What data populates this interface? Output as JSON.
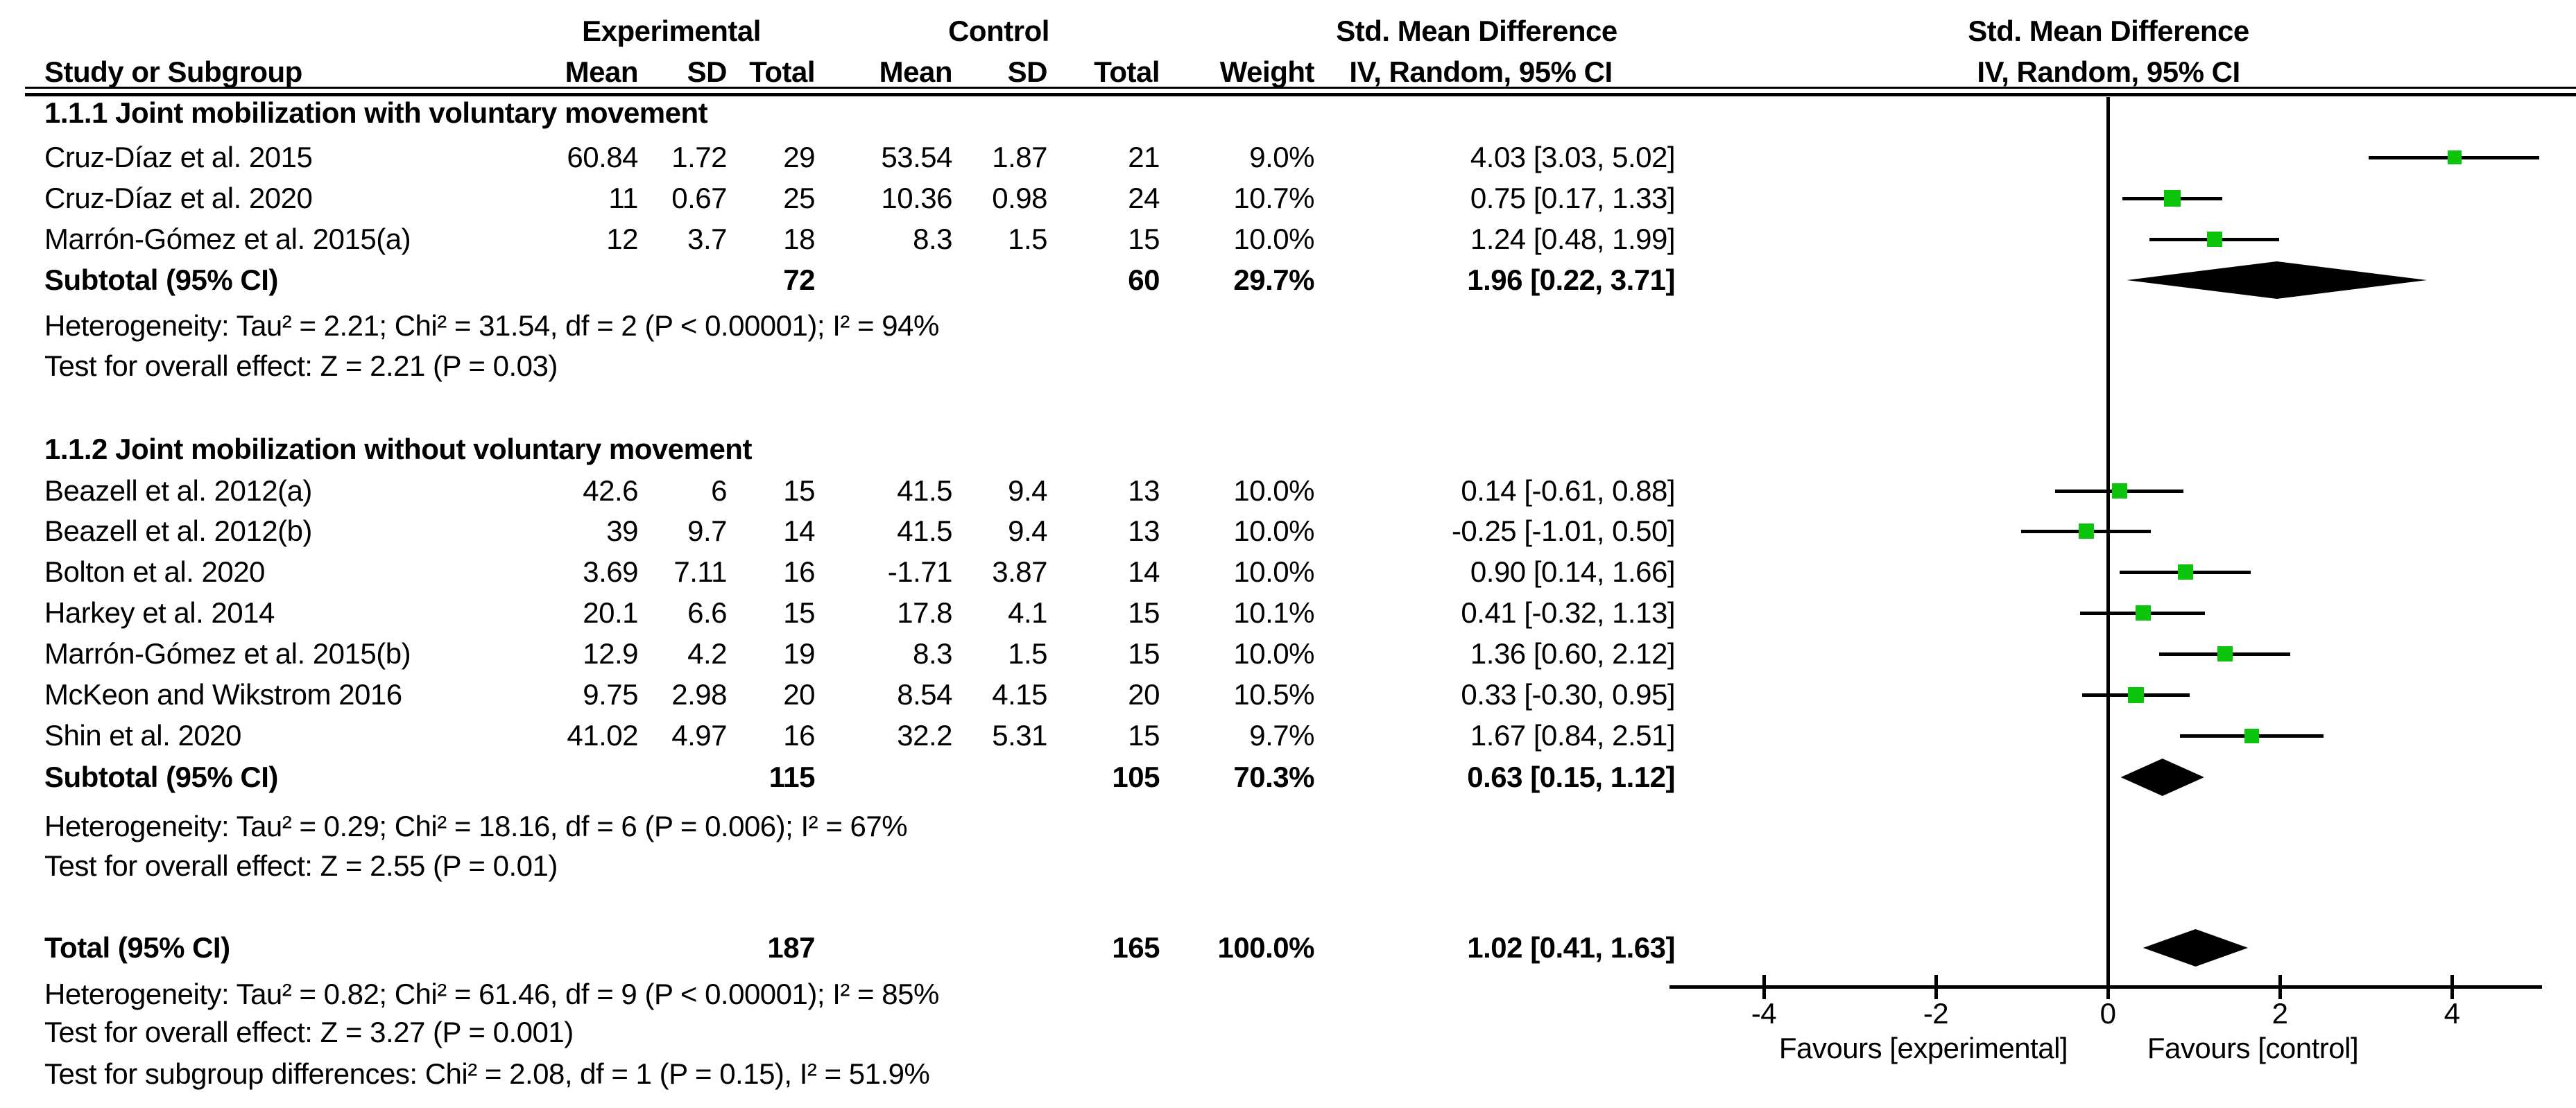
{
  "chart_data": {
    "type": "forest",
    "effect_measure": "Std. Mean Difference",
    "method": "IV, Random, 95% CI",
    "header": {
      "experimental": "Experimental",
      "control": "Control",
      "smd_text_col": "Std. Mean Difference",
      "smd_plot_col": "Std. Mean Difference",
      "study": "Study or Subgroup",
      "mean": "Mean",
      "sd": "SD",
      "total": "Total",
      "weight": "Weight",
      "iv_text_col": "IV, Random, 95% CI",
      "iv_plot_col": "IV, Random, 95% CI"
    },
    "groups": [
      {
        "title": "1.1.1 Joint mobilization with voluntary movement",
        "studies": [
          {
            "name": "Cruz-Díaz et al. 2015",
            "exp_mean": "60.84",
            "exp_sd": "1.72",
            "exp_total": "29",
            "ctl_mean": "53.54",
            "ctl_sd": "1.87",
            "ctl_total": "21",
            "weight": "9.0%",
            "ci_text": "4.03 [3.03, 5.02]",
            "est": 4.03,
            "lo": 3.03,
            "hi": 5.02
          },
          {
            "name": "Cruz-Díaz et al. 2020",
            "exp_mean": "11",
            "exp_sd": "0.67",
            "exp_total": "25",
            "ctl_mean": "10.36",
            "ctl_sd": "0.98",
            "ctl_total": "24",
            "weight": "10.7%",
            "ci_text": "0.75 [0.17, 1.33]",
            "est": 0.75,
            "lo": 0.17,
            "hi": 1.33
          },
          {
            "name": "Marrón-Gómez et al. 2015(a)",
            "exp_mean": "12",
            "exp_sd": "3.7",
            "exp_total": "18",
            "ctl_mean": "8.3",
            "ctl_sd": "1.5",
            "ctl_total": "15",
            "weight": "10.0%",
            "ci_text": "1.24 [0.48, 1.99]",
            "est": 1.24,
            "lo": 0.48,
            "hi": 1.99
          }
        ],
        "subtotal": {
          "label": "Subtotal (95% CI)",
          "exp_total": "72",
          "ctl_total": "60",
          "weight": "29.7%",
          "ci_text": "1.96 [0.22, 3.71]",
          "est": 1.96,
          "lo": 0.22,
          "hi": 3.71
        },
        "heterogeneity": "Heterogeneity: Tau² = 2.21; Chi² = 31.54, df = 2 (P < 0.00001); I² = 94%",
        "overall_effect": "Test for overall effect: Z = 2.21 (P = 0.03)"
      },
      {
        "title": "1.1.2 Joint mobilization without voluntary movement",
        "studies": [
          {
            "name": "Beazell et al. 2012(a)",
            "exp_mean": "42.6",
            "exp_sd": "6",
            "exp_total": "15",
            "ctl_mean": "41.5",
            "ctl_sd": "9.4",
            "ctl_total": "13",
            "weight": "10.0%",
            "ci_text": "0.14 [-0.61, 0.88]",
            "est": 0.14,
            "lo": -0.61,
            "hi": 0.88
          },
          {
            "name": "Beazell et al. 2012(b)",
            "exp_mean": "39",
            "exp_sd": "9.7",
            "exp_total": "14",
            "ctl_mean": "41.5",
            "ctl_sd": "9.4",
            "ctl_total": "13",
            "weight": "10.0%",
            "ci_text": "-0.25 [-1.01, 0.50]",
            "est": -0.25,
            "lo": -1.01,
            "hi": 0.5
          },
          {
            "name": "Bolton et al. 2020",
            "exp_mean": "3.69",
            "exp_sd": "7.11",
            "exp_total": "16",
            "ctl_mean": "-1.71",
            "ctl_sd": "3.87",
            "ctl_total": "14",
            "weight": "10.0%",
            "ci_text": "0.90 [0.14, 1.66]",
            "est": 0.9,
            "lo": 0.14,
            "hi": 1.66
          },
          {
            "name": "Harkey et al. 2014",
            "exp_mean": "20.1",
            "exp_sd": "6.6",
            "exp_total": "15",
            "ctl_mean": "17.8",
            "ctl_sd": "4.1",
            "ctl_total": "15",
            "weight": "10.1%",
            "ci_text": "0.41 [-0.32, 1.13]",
            "est": 0.41,
            "lo": -0.32,
            "hi": 1.13
          },
          {
            "name": "Marrón-Gómez et al. 2015(b)",
            "exp_mean": "12.9",
            "exp_sd": "4.2",
            "exp_total": "19",
            "ctl_mean": "8.3",
            "ctl_sd": "1.5",
            "ctl_total": "15",
            "weight": "10.0%",
            "ci_text": "1.36 [0.60, 2.12]",
            "est": 1.36,
            "lo": 0.6,
            "hi": 2.12
          },
          {
            "name": "McKeon and Wikstrom 2016",
            "exp_mean": "9.75",
            "exp_sd": "2.98",
            "exp_total": "20",
            "ctl_mean": "8.54",
            "ctl_sd": "4.15",
            "ctl_total": "20",
            "weight": "10.5%",
            "ci_text": "0.33 [-0.30, 0.95]",
            "est": 0.33,
            "lo": -0.3,
            "hi": 0.95
          },
          {
            "name": "Shin et al. 2020",
            "exp_mean": "41.02",
            "exp_sd": "4.97",
            "exp_total": "16",
            "ctl_mean": "32.2",
            "ctl_sd": "5.31",
            "ctl_total": "15",
            "weight": "9.7%",
            "ci_text": "1.67 [0.84, 2.51]",
            "est": 1.67,
            "lo": 0.84,
            "hi": 2.51
          }
        ],
        "subtotal": {
          "label": "Subtotal (95% CI)",
          "exp_total": "115",
          "ctl_total": "105",
          "weight": "70.3%",
          "ci_text": "0.63 [0.15, 1.12]",
          "est": 0.63,
          "lo": 0.15,
          "hi": 1.12
        },
        "heterogeneity": "Heterogeneity: Tau² = 0.29; Chi² = 18.16, df = 6 (P = 0.006); I² = 67%",
        "overall_effect": "Test for overall effect: Z = 2.55 (P = 0.01)"
      }
    ],
    "total": {
      "label": "Total (95% CI)",
      "exp_total": "187",
      "ctl_total": "165",
      "weight": "100.0%",
      "ci_text": "1.02 [0.41, 1.63]",
      "est": 1.02,
      "lo": 0.41,
      "hi": 1.63
    },
    "footer": {
      "heterogeneity": "Heterogeneity: Tau² = 0.82; Chi² = 61.46, df = 9 (P < 0.00001); I² = 85%",
      "overall_effect": "Test for overall effect: Z = 3.27 (P = 0.001)",
      "subgroup_diff": "Test for subgroup differences: Chi² = 2.08, df = 1 (P = 0.15), I² = 51.9%"
    },
    "axis": {
      "min": -5.1,
      "max": 5.05,
      "tick_values": [
        -4,
        -2,
        0,
        2,
        4
      ],
      "tick_labels": [
        "-4",
        "-2",
        "0",
        "2",
        "4"
      ],
      "favours_left": "Favours [experimental]",
      "favours_right": "Favours [control]"
    },
    "colors": {
      "marker_green": "#0bc40b",
      "line_black": "#000000",
      "diamond_black": "#000000"
    }
  }
}
